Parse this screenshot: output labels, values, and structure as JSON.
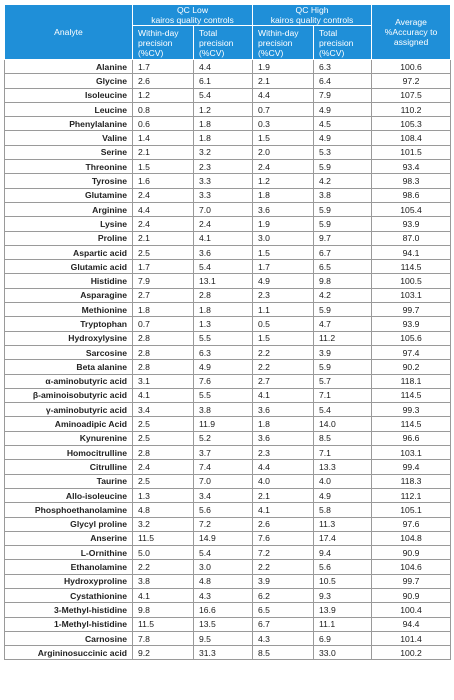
{
  "header": {
    "analyte": "Analyte",
    "qc_low": "QC Low\nkairos quality controls",
    "qc_high": "QC High\nkairos quality controls",
    "average": "Average\n%Accuracy to\nassigned",
    "within_day": "Within-day\nprecision\n(%CV)",
    "total": "Total\nprecision\n(%CV)"
  },
  "rows": [
    [
      "Alanine",
      "1.7",
      "4.4",
      "1.9",
      "6.3",
      "100.6"
    ],
    [
      "Glycine",
      "2.6",
      "6.1",
      "2.1",
      "6.4",
      "97.2"
    ],
    [
      "Isoleucine",
      "1.2",
      "5.4",
      "4.4",
      "7.9",
      "107.5"
    ],
    [
      "Leucine",
      "0.8",
      "1.2",
      "0.7",
      "4.9",
      "110.2"
    ],
    [
      "Phenylalanine",
      "0.6",
      "1.8",
      "0.3",
      "4.5",
      "105.3"
    ],
    [
      "Valine",
      "1.4",
      "1.8",
      "1.5",
      "4.9",
      "108.4"
    ],
    [
      "Serine",
      "2.1",
      "3.2",
      "2.0",
      "5.3",
      "101.5"
    ],
    [
      "Threonine",
      "1.5",
      "2.3",
      "2.4",
      "5.9",
      "93.4"
    ],
    [
      "Tyrosine",
      "1.6",
      "3.3",
      "1.2",
      "4.2",
      "98.3"
    ],
    [
      "Glutamine",
      "2.4",
      "3.3",
      "1.8",
      "3.8",
      "98.6"
    ],
    [
      "Arginine",
      "4.4",
      "7.0",
      "3.6",
      "5.9",
      "105.4"
    ],
    [
      "Lysine",
      "2.4",
      "2.4",
      "1.9",
      "5.9",
      "93.9"
    ],
    [
      "Proline",
      "2.1",
      "4.1",
      "3.0",
      "9.7",
      "87.0"
    ],
    [
      "Aspartic acid",
      "2.5",
      "3.6",
      "1.5",
      "6.7",
      "94.1"
    ],
    [
      "Glutamic acid",
      "1.7",
      "5.4",
      "1.7",
      "6.5",
      "114.5"
    ],
    [
      "Histidine",
      "7.9",
      "13.1",
      "4.9",
      "9.8",
      "100.5"
    ],
    [
      "Asparagine",
      "2.7",
      "2.8",
      "2.3",
      "4.2",
      "103.1"
    ],
    [
      "Methionine",
      "1.8",
      "1.8",
      "1.1",
      "5.9",
      "99.7"
    ],
    [
      "Tryptophan",
      "0.7",
      "1.3",
      "0.5",
      "4.7",
      "93.9"
    ],
    [
      "Hydroxylysine",
      "2.8",
      "5.5",
      "1.5",
      "11.2",
      "105.6"
    ],
    [
      "Sarcosine",
      "2.8",
      "6.3",
      "2.2",
      "3.9",
      "97.4"
    ],
    [
      "Beta alanine",
      "2.8",
      "4.9",
      "2.2",
      "5.9",
      "90.2"
    ],
    [
      "α-aminobutyric acid",
      "3.1",
      "7.6",
      "2.7",
      "5.7",
      "118.1"
    ],
    [
      "β-aminoisobutyric acid",
      "4.1",
      "5.5",
      "4.1",
      "7.1",
      "114.5"
    ],
    [
      "γ-aminobutyric acid",
      "3.4",
      "3.8",
      "3.6",
      "5.4",
      "99.3"
    ],
    [
      "Aminoadipic Acid",
      "2.5",
      "11.9",
      "1.8",
      "14.0",
      "114.5"
    ],
    [
      "Kynurenine",
      "2.5",
      "5.2",
      "3.6",
      "8.5",
      "96.6"
    ],
    [
      "Homocitrulline",
      "2.8",
      "3.7",
      "2.3",
      "7.1",
      "103.1"
    ],
    [
      "Citrulline",
      "2.4",
      "7.4",
      "4.4",
      "13.3",
      "99.4"
    ],
    [
      "Taurine",
      "2.5",
      "7.0",
      "4.0",
      "4.0",
      "118.3"
    ],
    [
      "Allo-isoleucine",
      "1.3",
      "3.4",
      "2.1",
      "4.9",
      "112.1"
    ],
    [
      "Phosphoethanolamine",
      "4.8",
      "5.6",
      "4.1",
      "5.8",
      "105.1"
    ],
    [
      "Glycyl proline",
      "3.2",
      "7.2",
      "2.6",
      "11.3",
      "97.6"
    ],
    [
      "Anserine",
      "11.5",
      "14.9",
      "7.6",
      "17.4",
      "104.8"
    ],
    [
      "L-Ornithine",
      "5.0",
      "5.4",
      "7.2",
      "9.4",
      "90.9"
    ],
    [
      "Ethanolamine",
      "2.2",
      "3.0",
      "2.2",
      "5.6",
      "104.6"
    ],
    [
      "Hydroxyproline",
      "3.8",
      "4.8",
      "3.9",
      "10.5",
      "99.7"
    ],
    [
      "Cystathionine",
      "4.1",
      "4.3",
      "6.2",
      "9.3",
      "90.9"
    ],
    [
      "3-Methyl-histidine",
      "9.8",
      "16.6",
      "6.5",
      "13.9",
      "100.4"
    ],
    [
      "1-Methyl-histidine",
      "11.5",
      "13.5",
      "6.7",
      "11.1",
      "94.4"
    ],
    [
      "Carnosine",
      "7.8",
      "9.5",
      "4.3",
      "6.9",
      "101.4"
    ],
    [
      "Argininosuccinic acid",
      "9.2",
      "31.3",
      "8.5",
      "33.0",
      "100.2"
    ]
  ]
}
